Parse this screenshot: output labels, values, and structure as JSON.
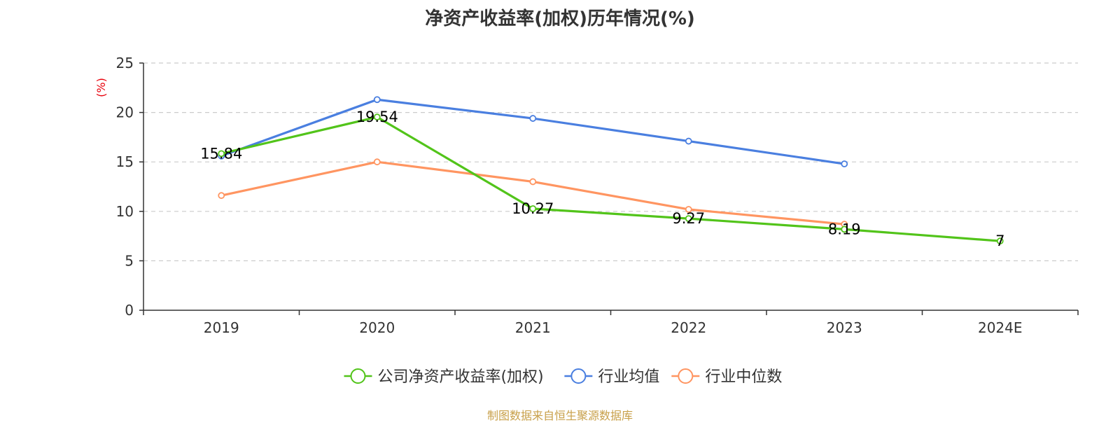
{
  "title": "净资产收益率(加权)历年情况(%)",
  "source_note": "制图数据来自恒生聚源数据库",
  "colors": {
    "company": "#52c41a",
    "industry_avg": "#4a7fe0",
    "industry_median": "#ff9561",
    "ylabel": "#e8000b",
    "grid": "#cccccc",
    "axis": "#333333",
    "source": "#c8a04a"
  },
  "chart_data": {
    "type": "line",
    "title": "净资产收益率(加权)历年情况(%)",
    "ylabel": "(%)",
    "xlabel": "",
    "categories": [
      "2019",
      "2020",
      "2021",
      "2022",
      "2023",
      "2024E"
    ],
    "ylim": [
      0,
      25
    ],
    "yticks": [
      0,
      5,
      10,
      15,
      20,
      25
    ],
    "grid": true,
    "legend_position": "bottom",
    "series": [
      {
        "name": "公司净资产收益率(加权)",
        "color": "#52c41a",
        "values": [
          15.84,
          19.54,
          10.27,
          9.27,
          8.19,
          7
        ],
        "labels": [
          "15.84",
          "19.54",
          "10.27",
          "9.27",
          "8.19",
          "7"
        ]
      },
      {
        "name": "行业均值",
        "color": "#4a7fe0",
        "values": [
          15.6,
          21.3,
          19.4,
          17.1,
          14.8,
          null
        ]
      },
      {
        "name": "行业中位数",
        "color": "#ff9561",
        "values": [
          11.6,
          15.0,
          13.0,
          10.2,
          8.7,
          null
        ]
      }
    ]
  }
}
